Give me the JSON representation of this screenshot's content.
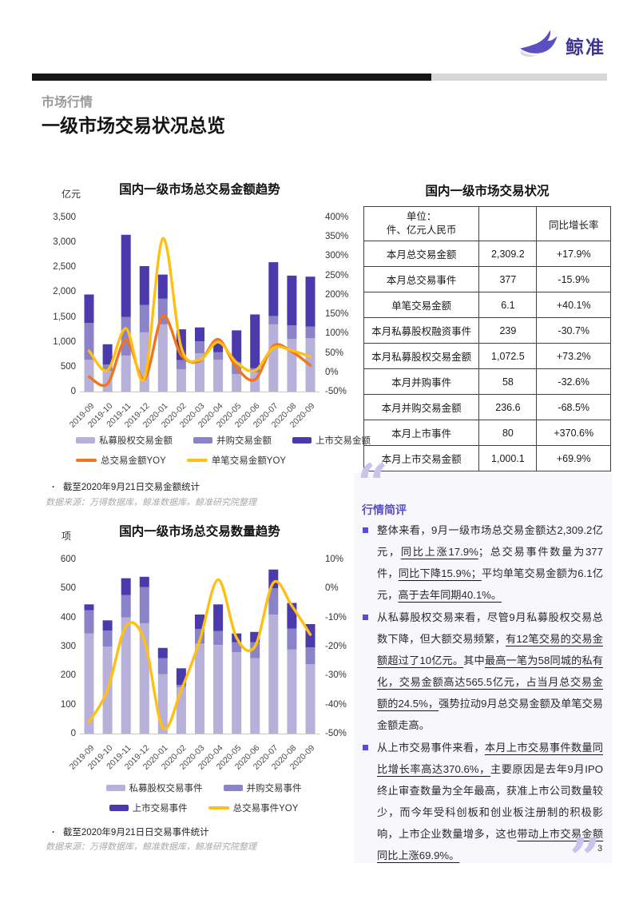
{
  "page": {
    "number": "3"
  },
  "header": {
    "logo_text": "鲸准",
    "section_label": "市场行情",
    "page_title": "一级市场交易状况总览"
  },
  "colors": {
    "brand_purple": "#5b4fc5",
    "bar_light_purple": "#b7b0d9",
    "bar_mid_purple": "#8b83c8",
    "bar_dark_purple": "#4b3aab",
    "line_orange": "#f0751e",
    "line_yellow": "#ffc013",
    "quote_mark": "#c9c4ec",
    "divider_black": "#161616",
    "divider_gray": "#d8d8d8"
  },
  "chart_data": [
    {
      "type": "bar+line",
      "title": "国内一级市场总交易金额趋势",
      "unit_label": "亿元",
      "categories": [
        "2019-09",
        "2019-10",
        "2019-11",
        "2019-12",
        "2020-01",
        "2020-02",
        "2020-03",
        "2020-04",
        "2020-05",
        "2020-06",
        "2020-07",
        "2020-08",
        "2020-09"
      ],
      "left_axis": {
        "min": 0,
        "max": 3500,
        "ticks": [
          "3,500",
          "3,000",
          "2,500",
          "2,000",
          "1,500",
          "1,000",
          "500",
          "0"
        ]
      },
      "right_axis": {
        "min": -50,
        "max": 400,
        "ticks": [
          "400%",
          "350%",
          "300%",
          "250%",
          "200%",
          "150%",
          "100%",
          "50%",
          "0%",
          "-50%"
        ]
      },
      "series": [
        {
          "name": "私募股权交易金额",
          "type": "bar",
          "color": "#b7b0d9",
          "values": [
            640,
            420,
            725,
            1190,
            1350,
            450,
            770,
            640,
            350,
            380,
            1350,
            1055,
            1072.5
          ]
        },
        {
          "name": "并购交易金额",
          "type": "bar",
          "color": "#8b83c8",
          "values": [
            735,
            120,
            775,
            550,
            515,
            180,
            240,
            150,
            240,
            90,
            170,
            275,
            236.6
          ]
        },
        {
          "name": "上市交易金额",
          "type": "bar",
          "color": "#4b3aab",
          "values": [
            575,
            410,
            1650,
            780,
            485,
            620,
            280,
            210,
            640,
            1080,
            1080,
            1000,
            1000.1
          ]
        },
        {
          "name": "总交易金额YOY",
          "type": "line",
          "axis": "right",
          "color": "#f0751e",
          "values": [
            -12,
            -30,
            84,
            -18,
            145,
            44,
            29,
            85,
            12,
            -19,
            68,
            53,
            17.9
          ]
        },
        {
          "name": "单笔交易金额YOY",
          "type": "line",
          "axis": "right",
          "color": "#ffc013",
          "values": [
            55,
            5,
            113,
            -16,
            345,
            64,
            32,
            78,
            25,
            4,
            63,
            56,
            40.1
          ]
        }
      ],
      "legend_rows": [
        [
          0,
          1,
          2
        ],
        [
          3,
          4
        ]
      ],
      "footnote": "截至2020年9月21日交易金额统计",
      "source": "数据来源：万得数据库，鲸准数据库，鲸准研究院整理"
    },
    {
      "type": "bar+line",
      "title": "国内一级市场总交易数量趋势",
      "unit_label": "项",
      "categories": [
        "2019-09",
        "2019-10",
        "2019-11",
        "2019-12",
        "2020-01",
        "2020-02",
        "2020-03",
        "2020-04",
        "2020-05",
        "2020-06",
        "2020-07",
        "2020-08",
        "2020-09"
      ],
      "left_axis": {
        "min": 0,
        "max": 600,
        "ticks": [
          "600",
          "500",
          "400",
          "300",
          "200",
          "100",
          "0"
        ]
      },
      "right_axis": {
        "min": -50,
        "max": 10,
        "ticks": [
          "10%",
          "0%",
          "-10%",
          "-20%",
          "-30%",
          "-40%",
          "-50%"
        ]
      },
      "series": [
        {
          "name": "私募股权交易事件",
          "type": "bar",
          "color": "#b7b0d9",
          "values": [
            345,
            300,
            400,
            380,
            205,
            160,
            310,
            305,
            280,
            260,
            410,
            290,
            239
          ]
        },
        {
          "name": "并购交易事件",
          "type": "bar",
          "color": "#8b83c8",
          "values": [
            80,
            55,
            77,
            125,
            55,
            8,
            50,
            48,
            35,
            55,
            90,
            72,
            58
          ]
        },
        {
          "name": "上市交易事件",
          "type": "bar",
          "color": "#4b3aab",
          "values": [
            20,
            35,
            58,
            35,
            35,
            57,
            50,
            92,
            30,
            35,
            65,
            88,
            80
          ]
        },
        {
          "name": "总交易事件YOY",
          "type": "line",
          "axis": "right",
          "color": "#ffc013",
          "values": [
            -46,
            -35,
            -13,
            -18,
            -48,
            -35,
            -18,
            3,
            -17,
            -20,
            2,
            -6,
            -15.9
          ]
        }
      ],
      "legend_rows": [
        [
          0,
          1
        ],
        [
          2,
          3
        ]
      ],
      "footnote": "截至2020年9月21日日交易事件统计",
      "source": "数据来源：万得数据库，鲸准数据库，鲸准研究院整理"
    }
  ],
  "table": {
    "title": "国内一级市场交易状况",
    "header_unit": "单位：\n件、亿元人民币",
    "header_growth": "同比增长率",
    "rows": [
      [
        "本月总交易金额",
        "2,309.2",
        "+17.9%"
      ],
      [
        "本月总交易事件",
        "377",
        "-15.9%"
      ],
      [
        "单笔交易金额",
        "6.1",
        "+40.1%"
      ],
      [
        "本月私募股权融资事件",
        "239",
        "-30.7%"
      ],
      [
        "本月私募股权交易金额",
        "1,072.5",
        "+73.2%"
      ],
      [
        "本月并购事件",
        "58",
        "-32.6%"
      ],
      [
        "本月并购交易金额",
        "236.6",
        "-68.5%"
      ],
      [
        "本月上市事件",
        "80",
        "+370.6%"
      ],
      [
        "本月上市交易金额",
        "1,000.1",
        "+69.9%"
      ]
    ]
  },
  "commentary": {
    "title": "行情简评",
    "bullets": [
      {
        "segments": [
          {
            "t": "整体来看，9月一级市场总交易金额达2,309.2亿元，",
            "u": false
          },
          {
            "t": "同比上涨17.9%",
            "u": true
          },
          {
            "t": "；总交易事件数量为377件，",
            "u": false
          },
          {
            "t": "同比下降15.9%；",
            "u": true
          },
          {
            "t": "平均单笔交易金额为6.1亿元，",
            "u": false
          },
          {
            "t": "高于去年同期40.1%。",
            "u": true
          }
        ]
      },
      {
        "segments": [
          {
            "t": "从私募股权交易来看，尽管9月私募股权交易总数下降，但大额交易频繁，",
            "u": false
          },
          {
            "t": "有12笔交易的交易金额超过了10亿元。",
            "u": true
          },
          {
            "t": "其中",
            "u": false
          },
          {
            "t": "最高一笔为58同城的私有化，交易金额高达565.5亿元，占当月总交易金额的24.5%，",
            "u": true
          },
          {
            "t": "强势拉动9月总交易金额及单笔交易金额走高。",
            "u": false
          }
        ]
      },
      {
        "segments": [
          {
            "t": "从上市交易事件来看，",
            "u": false
          },
          {
            "t": "本月上市交易事件数量同比增长率高达370.6%，",
            "u": true
          },
          {
            "t": "主要原因是去年9月IPO终止审查数量为全年最高，获准上市公司数量较少，而今年受科创板和创业板注册制的积极影响，上市企业数量增多，这也",
            "u": false
          },
          {
            "t": "带动上市交易金额同比上涨69.9%。",
            "u": true
          }
        ]
      }
    ]
  }
}
